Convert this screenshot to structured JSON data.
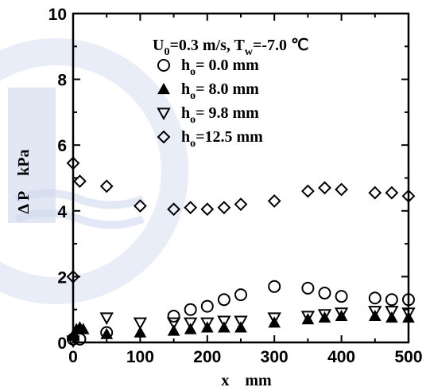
{
  "chart_data": {
    "type": "scatter",
    "title": "",
    "condition": {
      "velocity": "U",
      "velocity_sub": "0",
      "velocity_value": "=0.3 m/s, ",
      "temperature": "T",
      "temperature_sub": "w",
      "temperature_value": "=-7.0 ℃"
    },
    "xlabel": "x    mm",
    "ylabel": "Δ P    kPa",
    "xlim": [
      0,
      500
    ],
    "ylim": [
      0,
      10
    ],
    "x_ticks": [
      0,
      100,
      200,
      300,
      400,
      500
    ],
    "y_ticks": [
      0,
      2,
      4,
      6,
      8,
      10
    ],
    "x_tick_labels": [
      "0",
      "100",
      "200",
      "300",
      "400",
      "500"
    ],
    "y_tick_labels": [
      "0",
      "2",
      "4",
      "6",
      "8",
      "10"
    ],
    "grid": false,
    "legend_position": "top-right",
    "series": [
      {
        "label_main": "h",
        "label_sub": "o",
        "label_rest": "= 0.0 mm",
        "marker": "circle-open",
        "x": [
          0,
          10,
          50,
          150,
          175,
          200,
          225,
          250,
          300,
          350,
          375,
          400,
          450,
          475,
          500
        ],
        "y": [
          0.1,
          0.1,
          0.3,
          0.8,
          1.0,
          1.1,
          1.3,
          1.45,
          1.7,
          1.65,
          1.5,
          1.4,
          1.35,
          1.3,
          1.3
        ]
      },
      {
        "label_main": "h",
        "label_sub": "o",
        "label_rest": "= 8.0 mm",
        "marker": "triangle-up-filled",
        "x": [
          0,
          5,
          10,
          15,
          50,
          100,
          150,
          175,
          200,
          225,
          250,
          300,
          350,
          375,
          400,
          450,
          475,
          500
        ],
        "y": [
          0.2,
          0.4,
          0.45,
          0.4,
          0.25,
          0.3,
          0.35,
          0.4,
          0.45,
          0.45,
          0.45,
          0.6,
          0.7,
          0.75,
          0.8,
          0.8,
          0.75,
          0.75
        ]
      },
      {
        "label_main": "h",
        "label_sub": "o",
        "label_rest": "= 9.8 mm",
        "marker": "triangle-down-open",
        "x": [
          0,
          50,
          100,
          150,
          175,
          200,
          225,
          250,
          300,
          350,
          375,
          400,
          450,
          475,
          500
        ],
        "y": [
          0.05,
          0.75,
          0.6,
          0.6,
          0.6,
          0.6,
          0.65,
          0.65,
          0.75,
          0.8,
          0.85,
          0.9,
          0.95,
          0.95,
          0.9
        ]
      },
      {
        "label_main": "h",
        "label_sub": "o",
        "label_rest": "=12.5 mm",
        "marker": "diamond-open",
        "x": [
          0,
          0,
          10,
          50,
          100,
          150,
          175,
          200,
          225,
          250,
          300,
          350,
          375,
          400,
          450,
          475,
          500
        ],
        "y": [
          2.0,
          5.45,
          4.9,
          4.75,
          4.15,
          4.05,
          4.1,
          4.05,
          4.1,
          4.2,
          4.3,
          4.6,
          4.7,
          4.65,
          4.55,
          4.55,
          4.45
        ]
      }
    ]
  }
}
